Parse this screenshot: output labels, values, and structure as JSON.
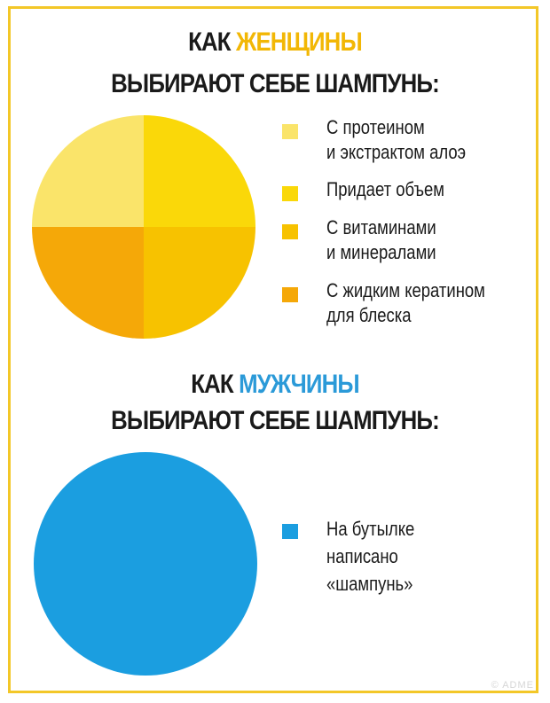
{
  "women": {
    "title_prefix": "КАК ",
    "title_highlight": "ЖЕНЩИНЫ",
    "title_line2": "ВЫБИРАЮТ СЕБЕ ШАМПУНЬ:"
  },
  "men": {
    "title_prefix": "КАК ",
    "title_highlight": "МУЖЧИНЫ",
    "title_line2": "ВЫБИРАЮТ СЕБЕ ШАМПУНЬ:"
  },
  "chart_data": [
    {
      "type": "pie",
      "title": "КАК ЖЕНЩИНЫ ВЫБИРАЮТ СЕБЕ ШАМПУНЬ:",
      "categories": [
        "С протеином и экстрактом алоэ",
        "Придает объем",
        "С витаминами и минералами",
        "С жидким кератином для блеска"
      ],
      "values": [
        25,
        25,
        25,
        25
      ],
      "colors": [
        "#fae46a",
        "#fad809",
        "#f7c200",
        "#f5a808"
      ],
      "legend": [
        {
          "line1": "С протеином",
          "line2": "и экстрактом алоэ",
          "color": "#fae46a"
        },
        {
          "line1": "Придает объем",
          "line2": "",
          "color": "#fad809"
        },
        {
          "line1": "С витаминами",
          "line2": "и минералами",
          "color": "#f7c200"
        },
        {
          "line1": "С жидким кератином",
          "line2": "для блеска",
          "color": "#f5a808"
        }
      ],
      "legend_position": "right"
    },
    {
      "type": "pie",
      "title": "КАК МУЖЧИНЫ ВЫБИРАЮТ СЕБЕ ШАМПУНЬ:",
      "categories": [
        "На бутылке написано «шампунь»"
      ],
      "values": [
        100
      ],
      "colors": [
        "#1b9ee0"
      ],
      "legend": [
        {
          "line1": "На бутылке",
          "line2": "написано",
          "line3": "«шампунь»",
          "color": "#1b9ee0"
        }
      ],
      "legend_position": "right"
    }
  ],
  "watermark": "© ADME"
}
